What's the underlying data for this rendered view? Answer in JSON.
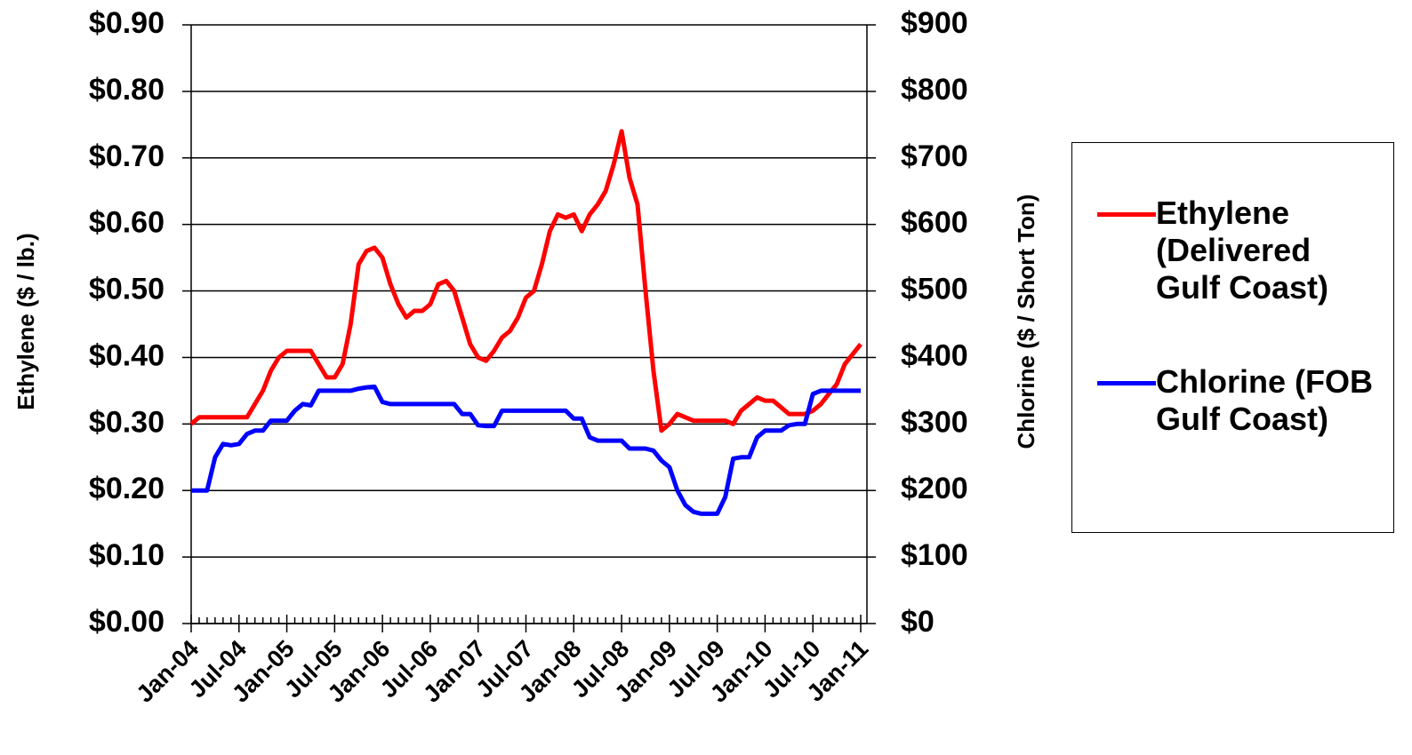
{
  "chart_data": {
    "type": "line",
    "categories": [
      "Jan-04",
      null,
      null,
      null,
      null,
      null,
      "Jul-04",
      null,
      null,
      null,
      null,
      null,
      "Jan-05",
      null,
      null,
      null,
      null,
      null,
      "Jul-05",
      null,
      null,
      null,
      null,
      null,
      "Jan-06",
      null,
      null,
      null,
      null,
      null,
      "Jul-06",
      null,
      null,
      null,
      null,
      null,
      "Jan-07",
      null,
      null,
      null,
      null,
      null,
      "Jul-07",
      null,
      null,
      null,
      null,
      null,
      "Jan-08",
      null,
      null,
      null,
      null,
      null,
      "Jul-08",
      null,
      null,
      null,
      null,
      null,
      "Jan-09",
      null,
      null,
      null,
      null,
      null,
      "Jul-09",
      null,
      null,
      null,
      null,
      null,
      "Jan-10",
      null,
      null,
      null,
      null,
      null,
      "Jul-10",
      null,
      null,
      null,
      null,
      null,
      "Jan-11"
    ],
    "ylabel": "Ethylene ($ / lb.)",
    "y2label": "Chlorine ($ / Short Ton)",
    "ylim": [
      0,
      0.9
    ],
    "yticks": [
      {
        "value": 0,
        "label": "$0.00"
      },
      {
        "value": 0.1,
        "label": "$0.10"
      },
      {
        "value": 0.2,
        "label": "$0.20"
      },
      {
        "value": 0.3,
        "label": "$0.30"
      },
      {
        "value": 0.4,
        "label": "$0.40"
      },
      {
        "value": 0.5,
        "label": "$0.50"
      },
      {
        "value": 0.6,
        "label": "$0.60"
      },
      {
        "value": 0.7,
        "label": "$0.70"
      },
      {
        "value": 0.8,
        "label": "$0.80"
      },
      {
        "value": 0.9,
        "label": "$0.90"
      }
    ],
    "y2lim": [
      0,
      900
    ],
    "y2ticks": [
      {
        "value": 0,
        "label": "$0"
      },
      {
        "value": 100,
        "label": "$100"
      },
      {
        "value": 200,
        "label": "$200"
      },
      {
        "value": 300,
        "label": "$300"
      },
      {
        "value": 400,
        "label": "$400"
      },
      {
        "value": 500,
        "label": "$500"
      },
      {
        "value": 600,
        "label": "$600"
      },
      {
        "value": 700,
        "label": "$700"
      },
      {
        "value": 800,
        "label": "$800"
      },
      {
        "value": 900,
        "label": "$900"
      }
    ],
    "grid": true,
    "legend": "right",
    "series": [
      {
        "name": "Ethylene (Delivered Gulf Coast)",
        "color": "#ff0000",
        "axis": "y",
        "values": [
          0.3,
          0.31,
          0.31,
          0.31,
          0.31,
          0.31,
          0.31,
          0.31,
          0.33,
          0.35,
          0.38,
          0.4,
          0.41,
          0.41,
          0.41,
          0.41,
          0.39,
          0.37,
          0.37,
          0.39,
          0.45,
          0.54,
          0.56,
          0.565,
          0.55,
          0.51,
          0.48,
          0.46,
          0.47,
          0.47,
          0.48,
          0.51,
          0.515,
          0.5,
          0.46,
          0.42,
          0.4,
          0.395,
          0.41,
          0.43,
          0.44,
          0.46,
          0.49,
          0.5,
          0.54,
          0.59,
          0.615,
          0.61,
          0.615,
          0.59,
          0.615,
          0.63,
          0.65,
          0.69,
          0.74,
          0.67,
          0.63,
          0.5,
          0.38,
          0.29,
          0.3,
          0.315,
          0.31,
          0.305,
          0.305,
          0.305,
          0.305,
          0.305,
          0.3,
          0.32,
          0.33,
          0.34,
          0.335,
          0.335,
          0.325,
          0.315,
          0.315,
          0.315,
          0.32,
          0.33,
          0.345,
          0.36,
          0.39,
          0.405,
          0.42
        ]
      },
      {
        "name": "Chlorine (FOB Gulf Coast)",
        "color": "#0000ff",
        "axis": "y2",
        "values": [
          200,
          200,
          200,
          250,
          270,
          268,
          270,
          285,
          290,
          290,
          305,
          305,
          305,
          320,
          330,
          328,
          350,
          350,
          350,
          350,
          350,
          353,
          355,
          356,
          333,
          330,
          330,
          330,
          330,
          330,
          330,
          330,
          330,
          330,
          315,
          315,
          298,
          297,
          297,
          320,
          320,
          320,
          320,
          320,
          320,
          320,
          320,
          320,
          308,
          308,
          280,
          275,
          275,
          275,
          275,
          263,
          263,
          263,
          260,
          245,
          235,
          200,
          178,
          168,
          165,
          165,
          165,
          190,
          248,
          250,
          250,
          280,
          290,
          290,
          290,
          298,
          300,
          300,
          345,
          350,
          350,
          350,
          350,
          350,
          350
        ]
      }
    ]
  }
}
